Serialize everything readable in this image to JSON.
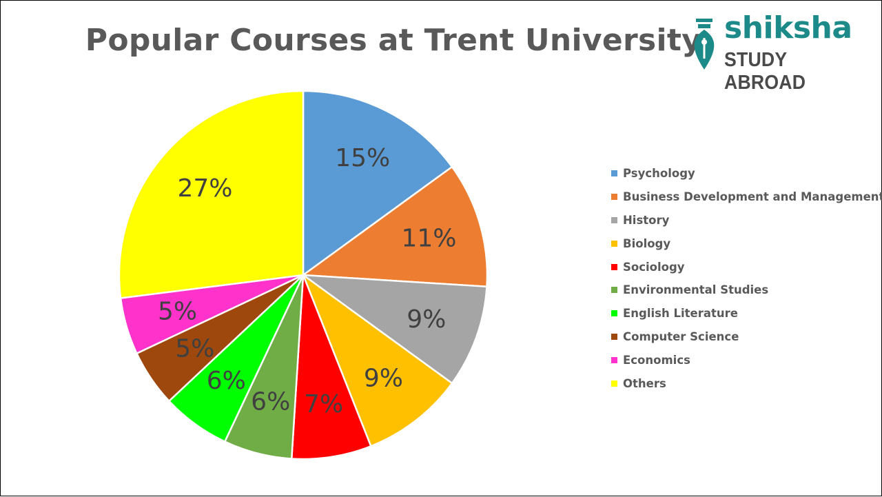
{
  "chart_data": {
    "type": "pie",
    "title": "Popular Courses at Trent University",
    "categories": [
      "Psychology",
      "Business Development and Management",
      "History",
      "Biology",
      "Sociology",
      "Environmental Studies",
      "English Literature",
      "Computer Science",
      "Economics",
      "Others"
    ],
    "values": [
      15,
      11,
      9,
      9,
      7,
      6,
      6,
      5,
      5,
      27
    ],
    "data_labels": [
      "15%",
      "11%",
      "9%",
      "9%",
      "7%",
      "6%",
      "6%",
      "5%",
      "5%",
      "27%"
    ],
    "colors": [
      "#5b9bd5",
      "#ed7d31",
      "#a5a5a5",
      "#ffc000",
      "#ff0000",
      "#70ad47",
      "#00ff00",
      "#9e480e",
      "#ff33cc",
      "#ffff00"
    ],
    "legend_position": "right",
    "start_angle": "12 o'clock, clockwise"
  },
  "logo": {
    "word": "shiksha",
    "subtitle": "STUDY ABROAD",
    "color": "#1d8a8a",
    "icon": "pen-nib-icon"
  }
}
